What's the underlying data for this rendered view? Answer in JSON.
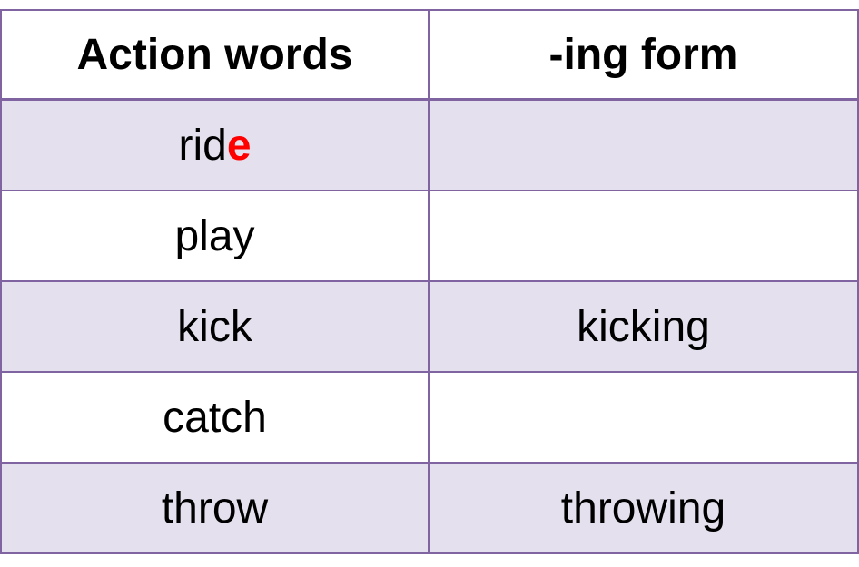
{
  "table": {
    "headers": [
      "Action words",
      "-ing form"
    ],
    "rows": [
      {
        "base": "rid",
        "highlight": "e",
        "ing": ""
      },
      {
        "base": "play",
        "highlight": "",
        "ing": ""
      },
      {
        "base": "kick",
        "highlight": "",
        "ing": "kicking"
      },
      {
        "base": "catch",
        "highlight": "",
        "ing": ""
      },
      {
        "base": "throw",
        "highlight": "",
        "ing": "throwing"
      }
    ]
  },
  "colors": {
    "border": "#8064a2",
    "shaded_row": "#e5e0ee",
    "highlight_letter": "#ff0000"
  }
}
